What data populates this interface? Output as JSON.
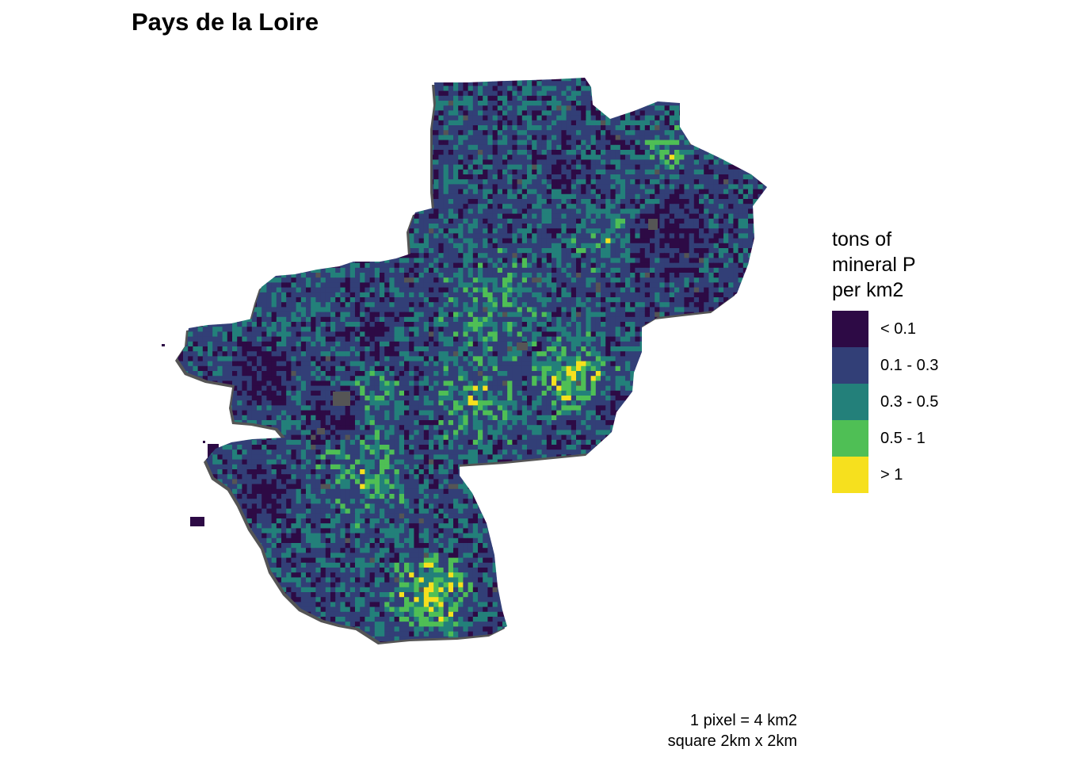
{
  "title": "Pays de la Loire",
  "legend": {
    "title_lines": [
      "tons of",
      "mineral P",
      "per km2"
    ],
    "classes": [
      {
        "label": "< 0.1",
        "color": "#2d0a45"
      },
      {
        "label": "0.1 - 0.3",
        "color": "#323f77"
      },
      {
        "label": "0.3 - 0.5",
        "color": "#23807a"
      },
      {
        "label": "0.5 - 1",
        "color": "#4fbf55"
      },
      {
        "label": "> 1",
        "color": "#f6e01e"
      }
    ]
  },
  "missing_color": "#555555",
  "caption": [
    "1 pixel = 4 km2",
    "square 2km x 2km"
  ]
}
